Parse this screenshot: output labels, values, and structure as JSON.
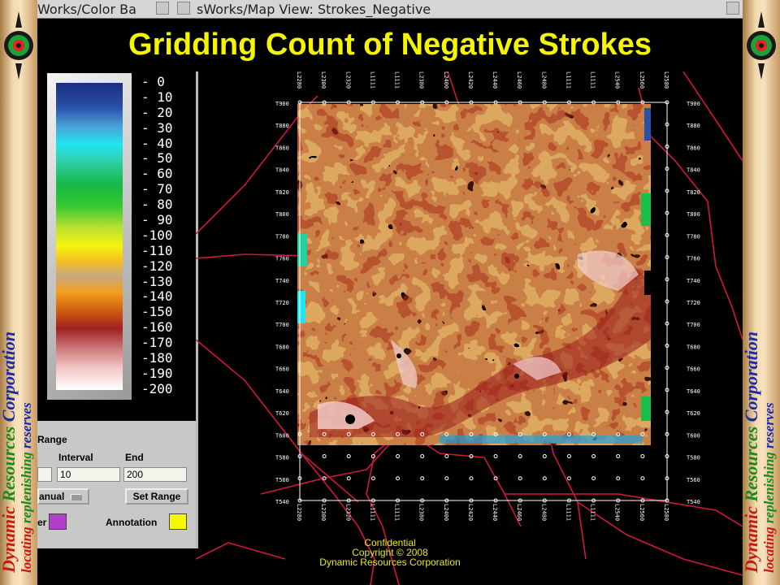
{
  "window": {
    "tab1_title": "Works/Color Ba",
    "tab2_title": "sWorks/Map View: Strokes_Negative"
  },
  "slide_title": "Gridding Count of Negative Strokes",
  "side_banner": {
    "line1": "Dynamic Resources Corporation",
    "line2": "locating replenishing reserves"
  },
  "colorbar": {
    "labels": [
      "- 0",
      "- 10",
      "- 20",
      "- 30",
      "- 40",
      "- 50",
      "- 60",
      "- 70",
      "- 80",
      "- 90",
      "-100",
      "-110",
      "-120",
      "-130",
      "-140",
      "-150",
      "-160",
      "-170",
      "-180",
      "-190",
      "-200"
    ]
  },
  "range_panel": {
    "section_label": "Range",
    "interval_label": "Interval",
    "end_label": "End",
    "interval_value": "10",
    "end_value": "200",
    "mode_value": "anual",
    "set_range_label": "Set Range",
    "color_label": "er",
    "annotation_label": "Annotation",
    "color_swatch": "#b040c8",
    "annotation_swatch": "#f8f800"
  },
  "map": {
    "top_ticks": [
      "L2280",
      "L2300",
      "L2320",
      "L1111",
      "L1111",
      "L2380",
      "L2400",
      "L2420",
      "L2440",
      "L2460",
      "L2480",
      "L1111",
      "L1111",
      "L2540",
      "L2560",
      "L2580"
    ],
    "bottom_ticks": [
      "L2280",
      "L2300",
      "L2320",
      "L1111",
      "L1111",
      "L2380",
      "L2400",
      "L2420",
      "L2440",
      "L2460",
      "L2480",
      "L1111",
      "L1111",
      "L2540",
      "L2560",
      "L2580"
    ],
    "right_ticks": [
      "T900",
      "T880",
      "T860",
      "T840",
      "T820",
      "T800",
      "T780",
      "T760",
      "T740",
      "T720",
      "T700",
      "T680",
      "T660",
      "T640",
      "T620",
      "T600",
      "T580",
      "T560",
      "T540"
    ],
    "left_ticks": [
      "T900",
      "T880",
      "T860",
      "T840",
      "T820",
      "T800",
      "T780",
      "T760",
      "T740",
      "T720",
      "T700",
      "T680",
      "T660",
      "T640",
      "T620",
      "T600",
      "T580",
      "T560",
      "T540"
    ]
  },
  "footer": {
    "line1": "Confidential",
    "line2": "Copyright © 2008",
    "line3": "Dynamic Resources Corporation"
  }
}
